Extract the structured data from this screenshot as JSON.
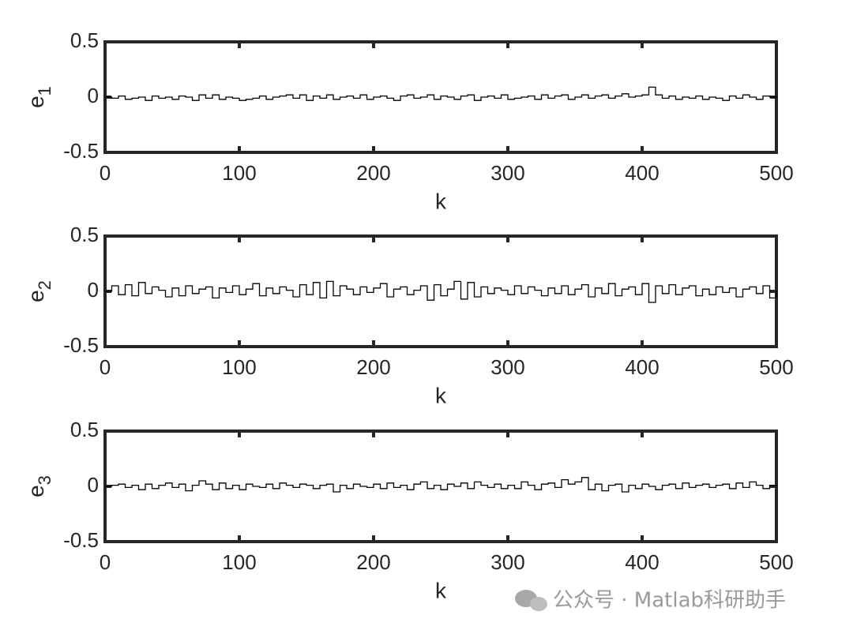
{
  "chart_data": [
    {
      "type": "line",
      "step": true,
      "ylabel": "e",
      "ylabel_subscript": "1",
      "xlabel": "k",
      "color": "#000000",
      "xlim": [
        0,
        500
      ],
      "ylim": [
        -0.5,
        0.5
      ],
      "xticks": [
        0,
        100,
        200,
        300,
        400,
        500
      ],
      "yticks": [
        -0.5,
        0,
        0.5
      ],
      "x": [
        0,
        5,
        10,
        15,
        20,
        25,
        30,
        35,
        40,
        45,
        50,
        55,
        60,
        65,
        70,
        75,
        80,
        85,
        90,
        95,
        100,
        105,
        110,
        115,
        120,
        125,
        130,
        135,
        140,
        145,
        150,
        155,
        160,
        165,
        170,
        175,
        180,
        185,
        190,
        195,
        200,
        205,
        210,
        215,
        220,
        225,
        230,
        235,
        240,
        245,
        250,
        255,
        260,
        265,
        270,
        275,
        280,
        285,
        290,
        295,
        300,
        305,
        310,
        315,
        320,
        325,
        330,
        335,
        340,
        345,
        350,
        355,
        360,
        365,
        370,
        375,
        380,
        385,
        390,
        395,
        400,
        405,
        410,
        415,
        420,
        425,
        430,
        435,
        440,
        445,
        450,
        455,
        460,
        465,
        470,
        475,
        480,
        485,
        490,
        495,
        500
      ],
      "values": [
        0,
        -0.01,
        0.01,
        -0.02,
        -0.01,
        0,
        -0.03,
        0.01,
        -0.01,
        0,
        -0.02,
        0.01,
        0,
        -0.03,
        0.02,
        -0.01,
        0.02,
        -0.02,
        0,
        -0.01,
        -0.03,
        -0.02,
        -0.01,
        0.01,
        -0.02,
        0,
        0.01,
        0.02,
        -0.01,
        0.02,
        -0.03,
        0.01,
        -0.01,
        0.02,
        -0.02,
        0,
        0.01,
        -0.01,
        0.02,
        -0.02,
        0,
        0.01,
        -0.01,
        -0.03,
        0.01,
        0.02,
        -0.01,
        0,
        0.02,
        -0.02,
        0.01,
        0,
        -0.02,
        0.01,
        0.02,
        -0.03,
        0,
        0.01,
        -0.01,
        0.02,
        -0.02,
        -0.01,
        0,
        0.01,
        -0.02,
        0.02,
        -0.01,
        0.01,
        0.02,
        -0.02,
        0,
        0.02,
        -0.01,
        0.01,
        0.02,
        -0.01,
        0.01,
        0.03,
        0,
        0.01,
        0.02,
        0.09,
        0.02,
        -0.01,
        0.01,
        -0.02,
        0,
        -0.01,
        0.01,
        -0.02,
        0,
        -0.01,
        -0.03,
        0.01,
        -0.01,
        0.02,
        0,
        -0.02,
        0.01,
        0,
        0.01
      ]
    },
    {
      "type": "line",
      "step": true,
      "ylabel": "e",
      "ylabel_subscript": "2",
      "xlabel": "k",
      "color": "#000000",
      "xlim": [
        0,
        500
      ],
      "ylim": [
        -0.5,
        0.5
      ],
      "xticks": [
        0,
        100,
        200,
        300,
        400,
        500
      ],
      "yticks": [
        -0.5,
        0,
        0.5
      ],
      "x": [
        0,
        5,
        10,
        15,
        20,
        25,
        30,
        35,
        40,
        45,
        50,
        55,
        60,
        65,
        70,
        75,
        80,
        85,
        90,
        95,
        100,
        105,
        110,
        115,
        120,
        125,
        130,
        135,
        140,
        145,
        150,
        155,
        160,
        165,
        170,
        175,
        180,
        185,
        190,
        195,
        200,
        205,
        210,
        215,
        220,
        225,
        230,
        235,
        240,
        245,
        250,
        255,
        260,
        265,
        270,
        275,
        280,
        285,
        290,
        295,
        300,
        305,
        310,
        315,
        320,
        325,
        330,
        335,
        340,
        345,
        350,
        355,
        360,
        365,
        370,
        375,
        380,
        385,
        390,
        395,
        400,
        405,
        410,
        415,
        420,
        425,
        430,
        435,
        440,
        445,
        450,
        455,
        460,
        465,
        470,
        475,
        480,
        485,
        490,
        495,
        500
      ],
      "values": [
        0,
        0.05,
        -0.03,
        0.06,
        -0.04,
        0.08,
        -0.02,
        0.04,
        0.01,
        -0.05,
        0.03,
        -0.04,
        0.05,
        -0.02,
        0.02,
        0.04,
        -0.06,
        0.03,
        -0.01,
        0.05,
        -0.03,
        0.02,
        0.07,
        -0.04,
        0.03,
        -0.02,
        0.04,
        0.01,
        -0.05,
        0.06,
        -0.03,
        0.08,
        -0.06,
        0.09,
        -0.04,
        0.05,
        0.02,
        -0.03,
        0.04,
        -0.01,
        0.03,
        0.07,
        -0.05,
        0.02,
        0.04,
        -0.03,
        0.01,
        0.05,
        -0.08,
        0.06,
        -0.04,
        0.02,
        0.09,
        -0.07,
        0.08,
        -0.05,
        0.04,
        -0.02,
        0.03,
        0.01,
        -0.03,
        0.05,
        -0.02,
        0.04,
        0.01,
        -0.04,
        0.03,
        -0.02,
        0.05,
        -0.03,
        0.02,
        0.06,
        -0.05,
        0.03,
        -0.02,
        0.07,
        -0.04,
        0.02,
        0.04,
        -0.03,
        0.07,
        -0.1,
        0.05,
        -0.02,
        0.06,
        -0.03,
        0.03,
        0.05,
        -0.04,
        0.02,
        -0.03,
        0.04,
        -0.01,
        0.03,
        -0.05,
        0.02,
        0.04,
        -0.02,
        0.05,
        -0.06,
        0.01
      ]
    },
    {
      "type": "line",
      "step": true,
      "ylabel": "e",
      "ylabel_subscript": "3",
      "xlabel": "k",
      "color": "#000000",
      "xlim": [
        0,
        500
      ],
      "ylim": [
        -0.5,
        0.5
      ],
      "xticks": [
        0,
        100,
        200,
        300,
        400,
        500
      ],
      "yticks": [
        -0.5,
        0,
        0.5
      ],
      "x": [
        0,
        5,
        10,
        15,
        20,
        25,
        30,
        35,
        40,
        45,
        50,
        55,
        60,
        65,
        70,
        75,
        80,
        85,
        90,
        95,
        100,
        105,
        110,
        115,
        120,
        125,
        130,
        135,
        140,
        145,
        150,
        155,
        160,
        165,
        170,
        175,
        180,
        185,
        190,
        195,
        200,
        205,
        210,
        215,
        220,
        225,
        230,
        235,
        240,
        245,
        250,
        255,
        260,
        265,
        270,
        275,
        280,
        285,
        290,
        295,
        300,
        305,
        310,
        315,
        320,
        325,
        330,
        335,
        340,
        345,
        350,
        355,
        360,
        365,
        370,
        375,
        380,
        385,
        390,
        395,
        400,
        405,
        410,
        415,
        420,
        425,
        430,
        435,
        440,
        445,
        450,
        455,
        460,
        465,
        470,
        475,
        480,
        485,
        490,
        495,
        500
      ],
      "values": [
        0,
        0.01,
        0.02,
        -0.01,
        0.01,
        -0.03,
        0.02,
        -0.02,
        0.01,
        0.03,
        -0.01,
        0.02,
        -0.04,
        0.01,
        0.05,
        0.02,
        -0.03,
        0.03,
        -0.02,
        0.01,
        -0.03,
        0.02,
        0,
        -0.01,
        0.02,
        -0.02,
        0.03,
        0.01,
        -0.01,
        0.02,
        0.01,
        -0.02,
        0.01,
        0.02,
        -0.05,
        0.01,
        -0.02,
        0.02,
        0,
        -0.01,
        0.02,
        -0.02,
        0.03,
        -0.01,
        0.01,
        -0.03,
        0.02,
        0.04,
        -0.02,
        0.01,
        -0.03,
        0.02,
        0,
        0.03,
        -0.02,
        0.04,
        0.01,
        -0.01,
        0.02,
        -0.02,
        0.01,
        -0.02,
        0.04,
        0.01,
        -0.03,
        0.02,
        0.03,
        -0.01,
        0.06,
        0.02,
        0.04,
        0.08,
        -0.03,
        0.02,
        -0.04,
        0.01,
        0.02,
        -0.05,
        0.01,
        -0.02,
        0.02,
        0,
        -0.03,
        0.01,
        0.02,
        -0.02,
        0.03,
        -0.01,
        0.01,
        0.02,
        -0.01,
        0.01,
        0.02,
        -0.02,
        0.03,
        -0.01,
        0.04,
        0.01,
        -0.02,
        0.01,
        0
      ]
    }
  ],
  "watermark": "公众号 · Matlab科研助手"
}
